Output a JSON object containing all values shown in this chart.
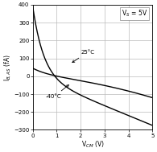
{
  "xlabel": "V$_{CM}$ (V)",
  "ylabel": "I$_{B,AS}$ (fA)",
  "annotation_vs": "V$_S$ = 5V",
  "label_25": "25°C",
  "label_m40": "-40°C",
  "xlim": [
    0,
    5
  ],
  "ylim": [
    -300,
    400
  ],
  "xticks": [
    0,
    1,
    2,
    3,
    4,
    5
  ],
  "yticks": [
    -300,
    -200,
    -100,
    0,
    100,
    200,
    300,
    400
  ],
  "background_color": "#ffffff",
  "line_color": "#000000",
  "grid_color": "#bbbbbb"
}
